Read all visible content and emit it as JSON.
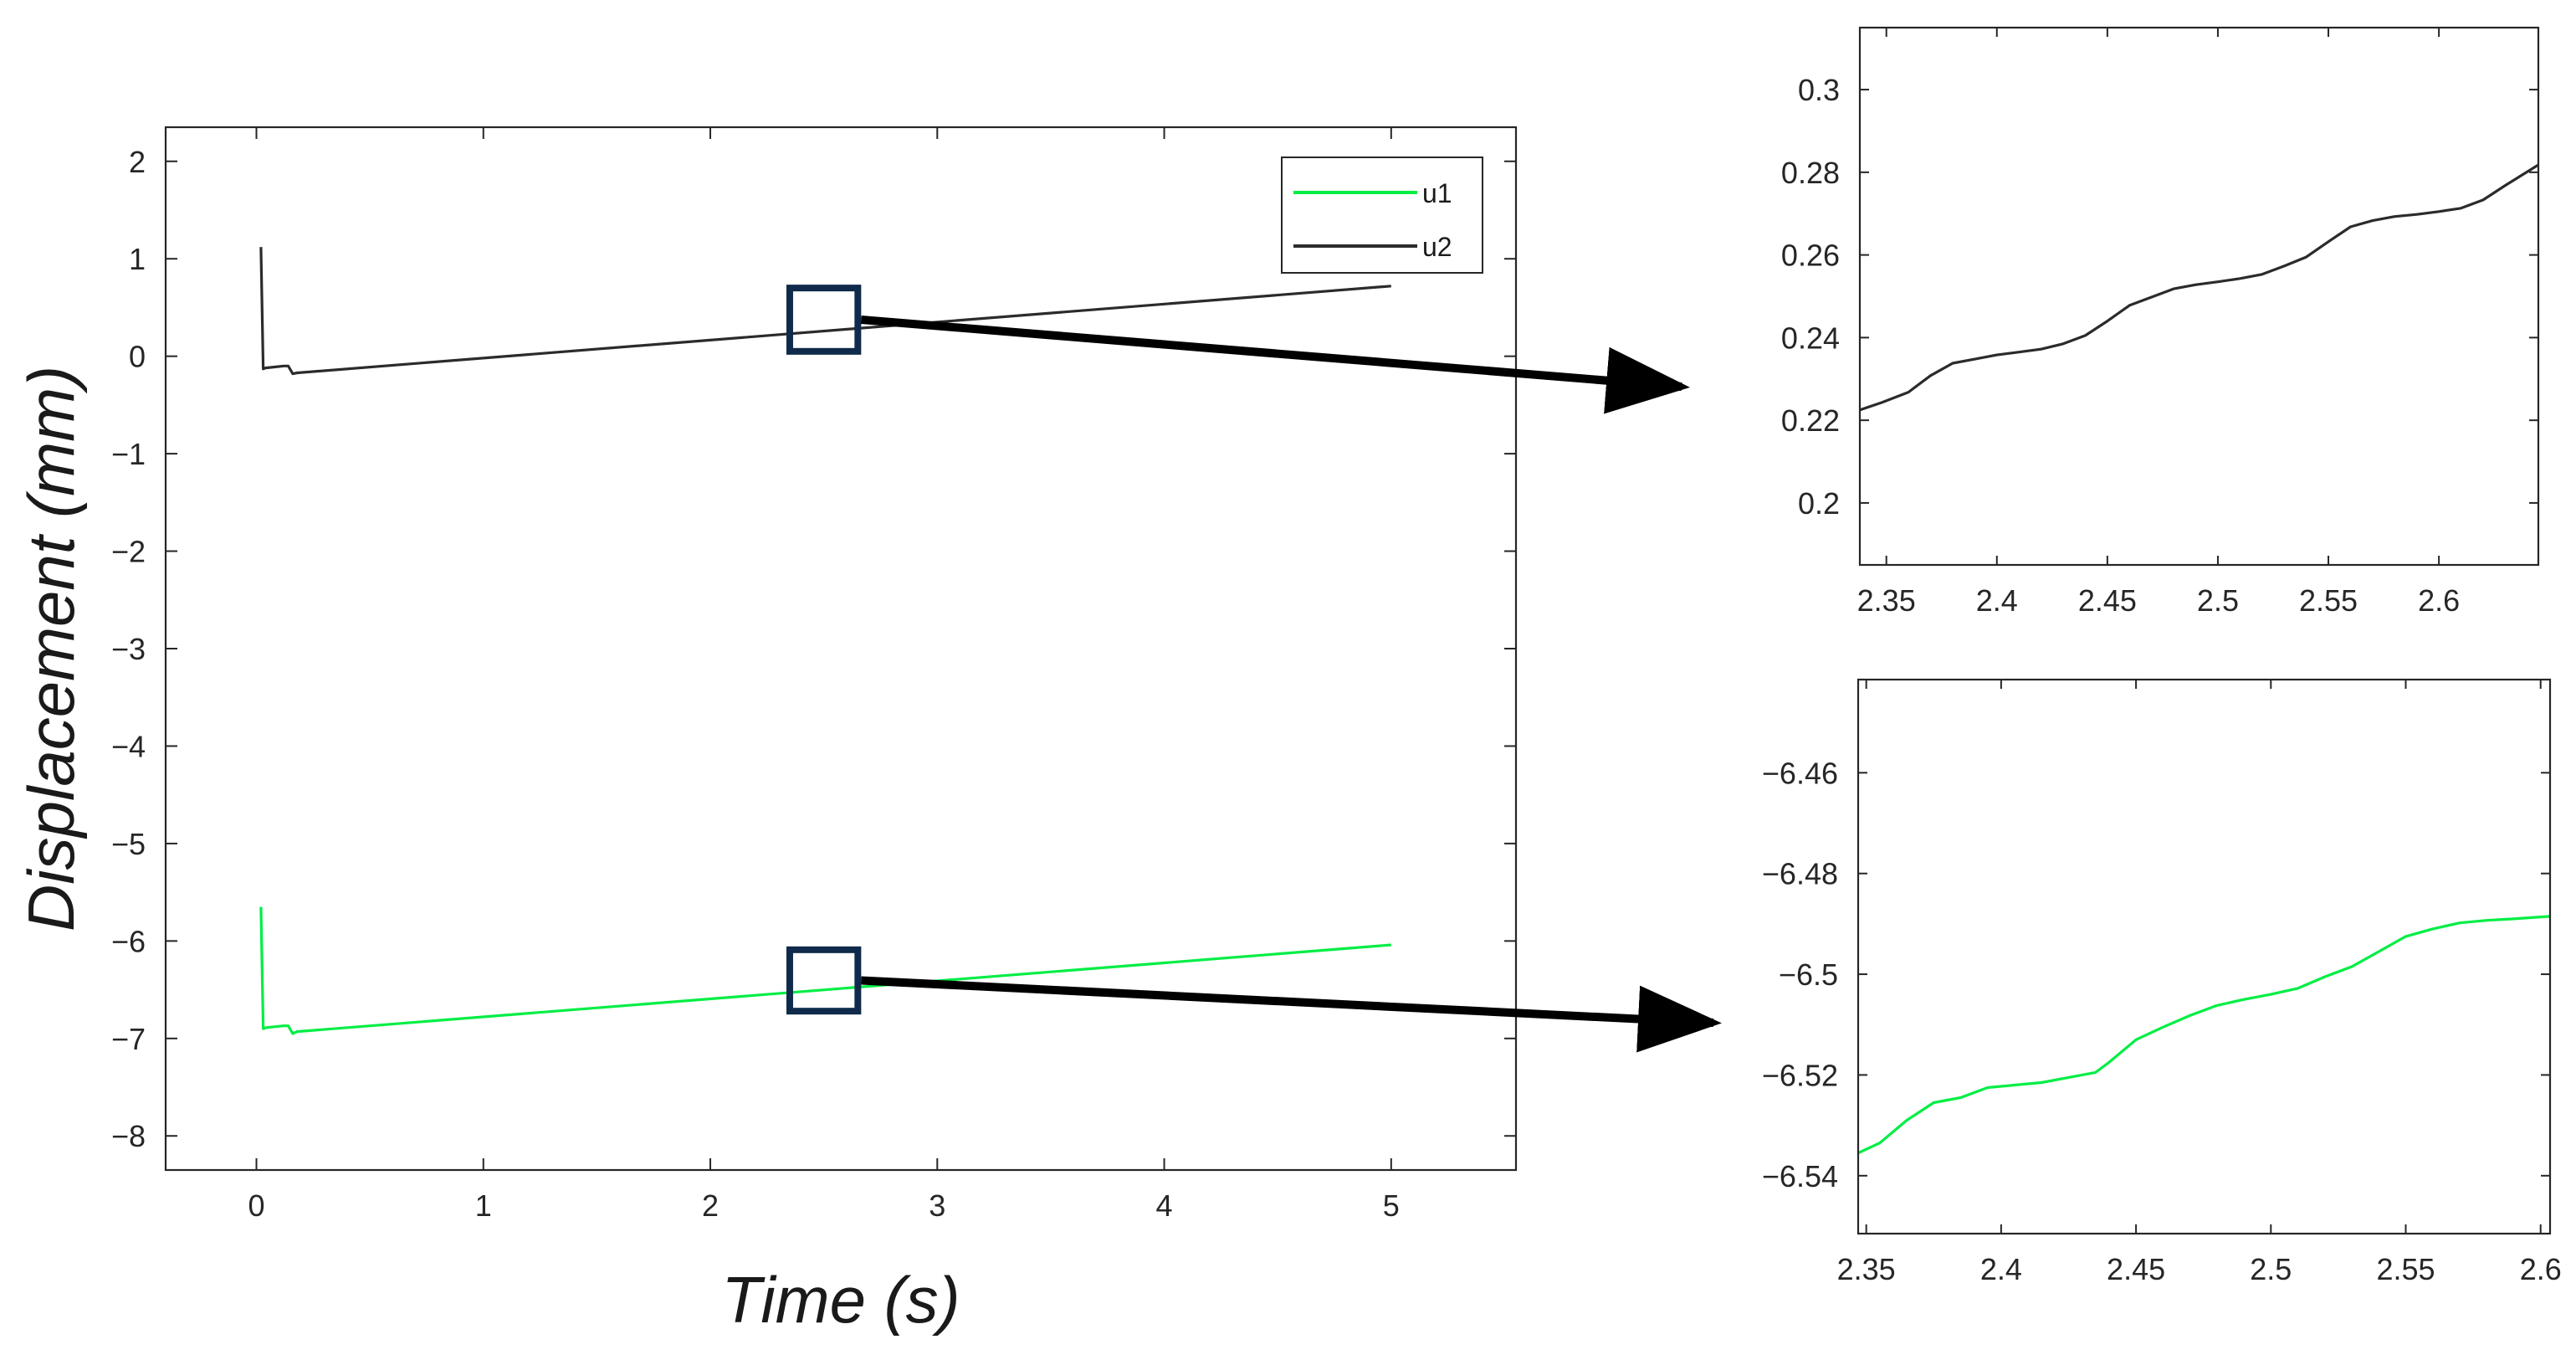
{
  "colors": {
    "u1": "#00ee44",
    "u2": "#2b2b2b",
    "axis": "#262626",
    "zoom_box": "#0f2a4a",
    "arrow": "#000000"
  },
  "chart_data": [
    {
      "id": "main",
      "type": "line",
      "title": "",
      "xlabel": "Time (s)",
      "ylabel": "Displacement (mm)",
      "xlim": [
        -0.4,
        5.55
      ],
      "ylim": [
        -8.35,
        2.35
      ],
      "xticks": [
        0,
        1,
        2,
        3,
        4,
        5
      ],
      "xtick_labels": [
        "0",
        "1",
        "2",
        "3",
        "4",
        "5"
      ],
      "yticks": [
        2,
        1,
        0,
        -1,
        -2,
        -3,
        -4,
        -5,
        -6,
        -7,
        -8
      ],
      "ytick_labels": [
        "2",
        "1",
        "0",
        "−1",
        "−2",
        "−3",
        "−4",
        "−5",
        "−6",
        "−7",
        "−8"
      ],
      "grid": false,
      "legend": "top-right",
      "series": [
        {
          "name": "u1",
          "color_key": "u1",
          "x": [
            0.02,
            0.03,
            0.04,
            0.08,
            0.12,
            0.14,
            0.16,
            0.18,
            5.0
          ],
          "y": [
            -5.65,
            -6.9,
            -6.89,
            -6.88,
            -6.87,
            -6.87,
            -6.95,
            -6.93,
            -6.04
          ]
        },
        {
          "name": "u2",
          "color_key": "u2",
          "x": [
            0.02,
            0.03,
            0.04,
            0.08,
            0.12,
            0.14,
            0.16,
            0.18,
            5.0
          ],
          "y": [
            1.12,
            -0.13,
            -0.12,
            -0.11,
            -0.1,
            -0.1,
            -0.18,
            -0.17,
            0.72
          ]
        }
      ],
      "zoom_boxes": [
        {
          "x_range": [
            2.35,
            2.65
          ],
          "y_range": [
            0.05,
            0.7
          ],
          "target": "inset_u2"
        },
        {
          "x_range": [
            2.35,
            2.65
          ],
          "y_range": [
            -6.72,
            -6.09
          ],
          "target": "inset_u1"
        }
      ]
    },
    {
      "id": "inset_u2",
      "type": "line",
      "title": "",
      "xlabel": "",
      "ylabel": "",
      "xlim": [
        2.338,
        2.645
      ],
      "ylim": [
        0.185,
        0.315
      ],
      "xticks": [
        2.35,
        2.4,
        2.45,
        2.5,
        2.55,
        2.6
      ],
      "xtick_labels": [
        "2.35",
        "2.4",
        "2.45",
        "2.5",
        "2.55",
        "2.6"
      ],
      "yticks": [
        0.3,
        0.28,
        0.26,
        0.24,
        0.22,
        0.2
      ],
      "ytick_labels": [
        "0.3",
        "0.28",
        "0.26",
        "0.24",
        "0.22",
        "0.2"
      ],
      "grid": false,
      "series": [
        {
          "name": "",
          "color_key": "u2",
          "x": [
            2.338,
            2.348,
            2.36,
            2.37,
            2.38,
            2.39,
            2.4,
            2.41,
            2.42,
            2.43,
            2.44,
            2.45,
            2.46,
            2.47,
            2.48,
            2.49,
            2.5,
            2.51,
            2.52,
            2.53,
            2.54,
            2.55,
            2.56,
            2.57,
            2.58,
            2.59,
            2.6,
            2.61,
            2.62,
            2.63,
            2.645
          ],
          "y": [
            0.2225,
            0.2243,
            0.2268,
            0.2308,
            0.2338,
            0.2348,
            0.2358,
            0.2365,
            0.2372,
            0.2385,
            0.2405,
            0.244,
            0.2478,
            0.2498,
            0.2518,
            0.2528,
            0.2535,
            0.2543,
            0.2553,
            0.2573,
            0.2595,
            0.2632,
            0.2668,
            0.2683,
            0.2693,
            0.2698,
            0.2705,
            0.2713,
            0.2733,
            0.2768,
            0.2818
          ]
        }
      ]
    },
    {
      "id": "inset_u1",
      "type": "line",
      "title": "",
      "xlabel": "",
      "ylabel": "",
      "xlim": [
        2.347,
        2.6035
      ],
      "ylim": [
        -6.5515,
        -6.4415
      ],
      "xticks": [
        2.35,
        2.4,
        2.45,
        2.5,
        2.55,
        2.6
      ],
      "xtick_labels": [
        "2.35",
        "2.4",
        "2.45",
        "2.5",
        "2.55",
        "2.6"
      ],
      "yticks": [
        -6.46,
        -6.48,
        -6.5,
        -6.52,
        -6.54
      ],
      "ytick_labels": [
        "−6.46",
        "−6.48",
        "−6.5",
        "−6.52",
        "−6.54"
      ],
      "grid": false,
      "series": [
        {
          "name": "",
          "color_key": "u1",
          "x": [
            2.347,
            2.355,
            2.365,
            2.375,
            2.385,
            2.395,
            2.405,
            2.415,
            2.425,
            2.435,
            2.44,
            2.45,
            2.46,
            2.47,
            2.48,
            2.49,
            2.5,
            2.51,
            2.52,
            2.53,
            2.54,
            2.55,
            2.56,
            2.57,
            2.58,
            2.59,
            2.6035
          ],
          "y": [
            -6.5355,
            -6.5335,
            -6.529,
            -6.5255,
            -6.5245,
            -6.5225,
            -6.522,
            -6.5215,
            -6.5205,
            -6.5195,
            -6.5175,
            -6.513,
            -6.5105,
            -6.5082,
            -6.5062,
            -6.505,
            -6.504,
            -6.5028,
            -6.5005,
            -6.4985,
            -6.4955,
            -6.4925,
            -6.491,
            -6.4898,
            -6.4893,
            -6.489,
            -6.4885
          ]
        }
      ]
    }
  ]
}
